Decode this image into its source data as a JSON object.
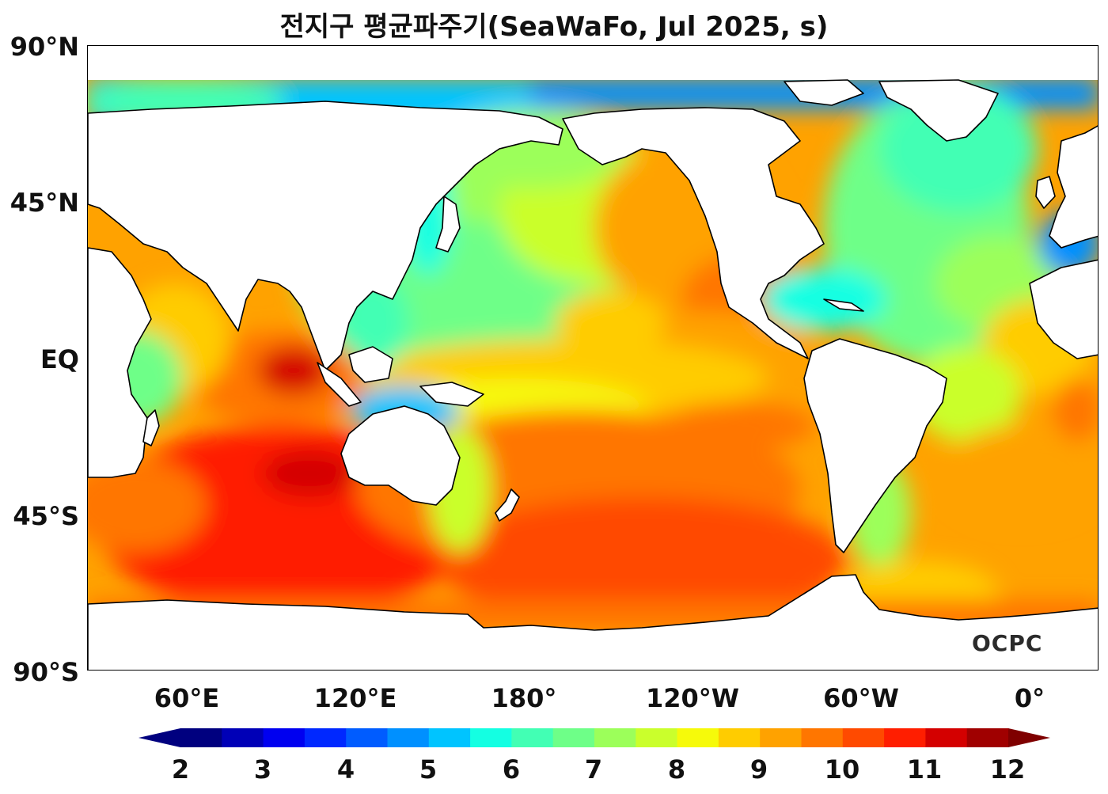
{
  "title": "전지구 평균파주기(SeaWaFo, Jul 2025, s)",
  "logo_text": "OCPC",
  "y_ticks": [
    "90°N",
    "45°N",
    "EQ",
    "45°S",
    "90°S"
  ],
  "x_ticks": [
    "60°E",
    "120°E",
    "180°",
    "120°W",
    "60°W",
    "0°"
  ],
  "colorbar": {
    "ticks": [
      "2",
      "3",
      "4",
      "5",
      "6",
      "7",
      "8",
      "9",
      "10",
      "11",
      "12"
    ],
    "colors": [
      "#00007f",
      "#0000b7",
      "#0000f0",
      "#0028ff",
      "#005cff",
      "#0090ff",
      "#00c4ff",
      "#14ffe2",
      "#42ffb4",
      "#6eff88",
      "#9cff5a",
      "#caff2c",
      "#f6fa0a",
      "#ffcc00",
      "#ffa200",
      "#ff7600",
      "#ff4a00",
      "#ff1e00",
      "#d40000",
      "#a00000"
    ],
    "extend_min": "#00007f",
    "extend_max": "#7f0000"
  }
}
